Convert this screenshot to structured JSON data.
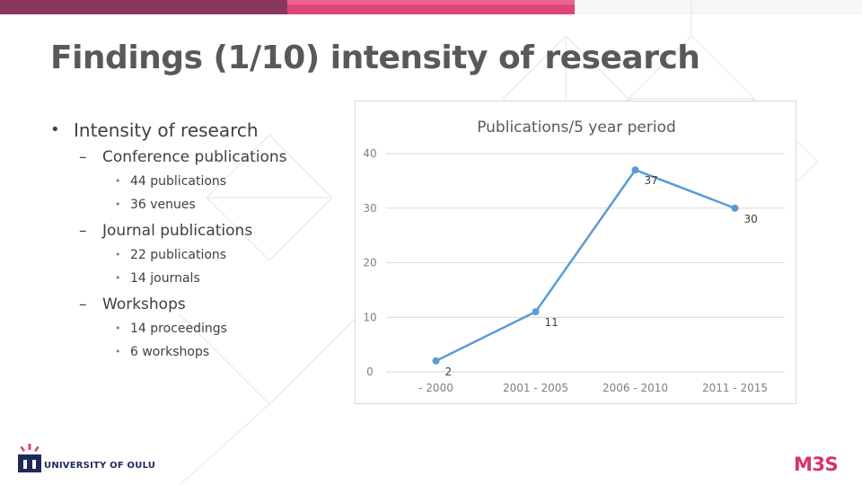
{
  "slide": {
    "title": "Findings (1/10) intensity of research"
  },
  "bullets": {
    "main": "Intensity of research",
    "conference": {
      "label": "Conference publications",
      "items": [
        "44 publications",
        "36 venues"
      ]
    },
    "journal": {
      "label": "Journal publications",
      "items": [
        "22 publications",
        "14 journals"
      ]
    },
    "workshops": {
      "label": "Workshops",
      "items": [
        "14 proceedings",
        "6 workshops"
      ]
    }
  },
  "chart_data": {
    "type": "line",
    "title": "Publications/5 year period",
    "categories": [
      "- 2000",
      "2001 - 2005",
      "2006 - 2010",
      "2011 - 2015"
    ],
    "values": [
      2,
      11,
      37,
      30
    ],
    "data_labels": [
      "2",
      "11",
      "37",
      "30"
    ],
    "ylim": [
      0,
      40
    ],
    "yticks": [
      "0",
      "10",
      "20",
      "30",
      "40"
    ],
    "grid": true,
    "legend": "none",
    "line_color": "#5b9bd5",
    "grid_color": "#d9d9d9"
  },
  "footer": {
    "university": "UNIVERSITY OF OULU",
    "logo_text": "M3S"
  },
  "colors": {
    "bar_dark": "#8a3760",
    "bar_pink": "#e0457a",
    "m3s": "#d6336c",
    "uni_navy": "#1f2a5a"
  }
}
